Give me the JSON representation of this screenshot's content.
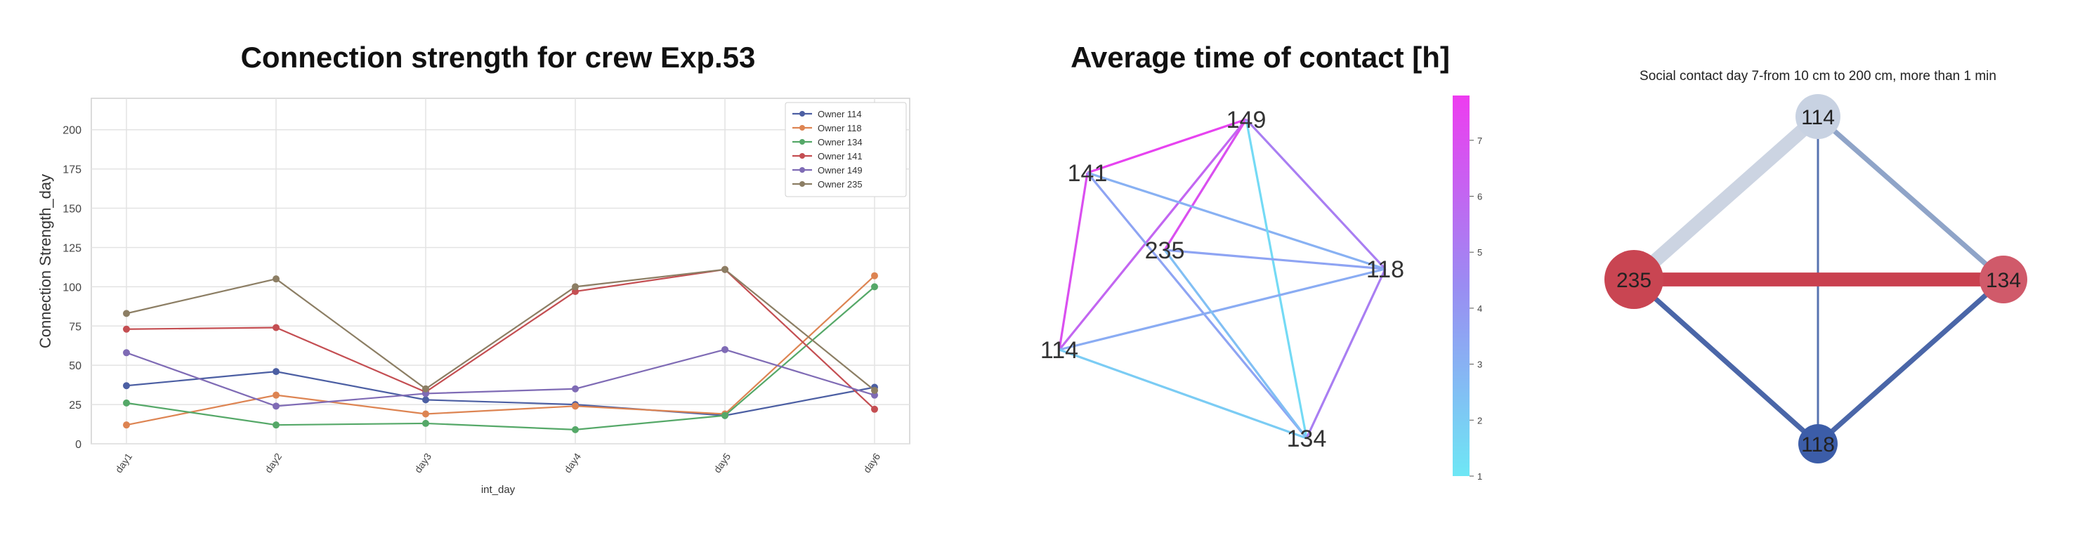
{
  "chart_data": [
    {
      "type": "line",
      "title": "Connection strength for crew Exp.53",
      "xlabel": "int_day",
      "ylabel": "Connection Strength_day",
      "categories": [
        "day1",
        "day2",
        "day3",
        "day4",
        "day5",
        "day6"
      ],
      "ylim": [
        0,
        220
      ],
      "yticks": [
        0,
        25,
        50,
        75,
        100,
        125,
        150,
        175,
        200
      ],
      "grid": true,
      "legend_position": "top-right",
      "series": [
        {
          "name": "Owner 114",
          "color": "#4c5fa3",
          "values": [
            37,
            46,
            28,
            25,
            18,
            36
          ]
        },
        {
          "name": "Owner 118",
          "color": "#dd8452",
          "values": [
            12,
            31,
            19,
            24,
            19,
            107
          ]
        },
        {
          "name": "Owner 134",
          "color": "#55a868",
          "values": [
            26,
            12,
            13,
            9,
            18,
            100
          ]
        },
        {
          "name": "Owner 141",
          "color": "#c44e52",
          "values": [
            73,
            74,
            33,
            97,
            111,
            22
          ]
        },
        {
          "name": "Owner 149",
          "color": "#7f6bb5",
          "values": [
            58,
            24,
            32,
            35,
            60,
            31
          ]
        },
        {
          "name": "Owner 235",
          "color": "#8c7e64",
          "values": [
            83,
            105,
            35,
            100,
            111,
            34
          ]
        }
      ]
    },
    {
      "type": "network",
      "title": "Average time of contact [h]",
      "colorbar": {
        "min": 1,
        "max": 7.8,
        "ticks": [
          1,
          2,
          3,
          4,
          5,
          6,
          7
        ],
        "low_color": "#6ee7f5",
        "high_color": "#ee3cf0"
      },
      "nodes": [
        "149",
        "141",
        "235",
        "118",
        "114",
        "134"
      ],
      "edges": [
        {
          "source": "141",
          "target": "149",
          "value": 7.5
        },
        {
          "source": "141",
          "target": "114",
          "value": 7.0
        },
        {
          "source": "114",
          "target": "149",
          "value": 6.0
        },
        {
          "source": "235",
          "target": "149",
          "value": 7.0
        },
        {
          "source": "141",
          "target": "118",
          "value": 3.0
        },
        {
          "source": "141",
          "target": "134",
          "value": 3.5
        },
        {
          "source": "149",
          "target": "134",
          "value": 1.5
        },
        {
          "source": "149",
          "target": "118",
          "value": 5.0
        },
        {
          "source": "235",
          "target": "118",
          "value": 3.5
        },
        {
          "source": "114",
          "target": "118",
          "value": 3.2
        },
        {
          "source": "114",
          "target": "134",
          "value": 2.0
        },
        {
          "source": "118",
          "target": "134",
          "value": 5.0
        },
        {
          "source": "235",
          "target": "134",
          "value": 2.5
        }
      ]
    },
    {
      "type": "network",
      "title": "Social contact day 7-from 10 cm to 200 cm, more than 1 min",
      "nodes": [
        {
          "id": "114",
          "color": "#c8d2e2"
        },
        {
          "id": "235",
          "color": "#c94552"
        },
        {
          "id": "134",
          "color": "#d05a6a"
        },
        {
          "id": "118",
          "color": "#3c5da8"
        }
      ],
      "edges": [
        {
          "source": "114",
          "target": "235",
          "color": "#ccd4e2",
          "weight": 5
        },
        {
          "source": "114",
          "target": "134",
          "color": "#8fa4c8",
          "weight": 2
        },
        {
          "source": "114",
          "target": "118",
          "color": "#5773b0",
          "weight": 1
        },
        {
          "source": "235",
          "target": "134",
          "color": "#c9404f",
          "weight": 5
        },
        {
          "source": "235",
          "target": "118",
          "color": "#4a66a8",
          "weight": 2
        },
        {
          "source": "134",
          "target": "118",
          "color": "#4a66a8",
          "weight": 2
        }
      ]
    }
  ]
}
